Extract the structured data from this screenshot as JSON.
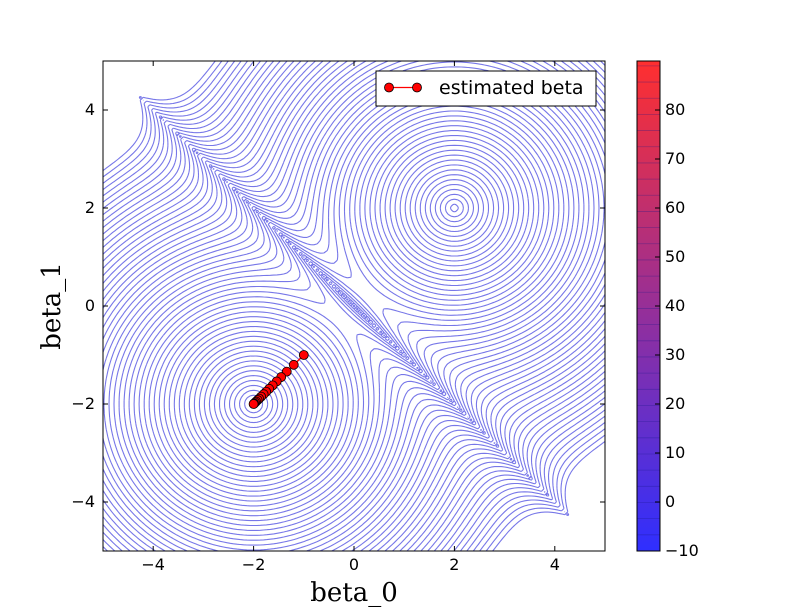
{
  "chart_data": {
    "type": "contour",
    "xlabel": "beta_0",
    "ylabel": "beta_1",
    "xlim": [
      -5,
      5
    ],
    "ylim": [
      -5,
      5
    ],
    "x_ticks": [
      -4,
      -2,
      0,
      2,
      4
    ],
    "y_ticks": [
      -4,
      -2,
      0,
      2,
      4
    ],
    "contour_color": "#7777e8",
    "contour_minima": [
      {
        "x": -2,
        "y": -2
      },
      {
        "x": 2,
        "y": 2
      }
    ],
    "series": [
      {
        "name": "estimated beta",
        "color": "#ff0000",
        "marker": "circle",
        "points": [
          {
            "x": -1.0,
            "y": -1.0
          },
          {
            "x": -1.2,
            "y": -1.2
          },
          {
            "x": -1.34,
            "y": -1.34
          },
          {
            "x": -1.45,
            "y": -1.45
          },
          {
            "x": -1.54,
            "y": -1.54
          },
          {
            "x": -1.62,
            "y": -1.62
          },
          {
            "x": -1.69,
            "y": -1.69
          },
          {
            "x": -1.75,
            "y": -1.75
          },
          {
            "x": -1.8,
            "y": -1.8
          },
          {
            "x": -1.85,
            "y": -1.85
          },
          {
            "x": -1.89,
            "y": -1.89
          },
          {
            "x": -1.92,
            "y": -1.92
          },
          {
            "x": -1.95,
            "y": -1.95
          },
          {
            "x": -1.97,
            "y": -1.97
          },
          {
            "x": -1.99,
            "y": -1.99
          },
          {
            "x": -2.0,
            "y": -2.0
          }
        ]
      }
    ],
    "legend": {
      "placement": "top-right",
      "entries": [
        "estimated beta"
      ]
    },
    "colorbar": {
      "min": -10,
      "max": 90,
      "ticks": [
        -10,
        0,
        10,
        20,
        30,
        40,
        50,
        60,
        70,
        80
      ],
      "color_low": "#2f2fff",
      "color_high": "#ff2f2f"
    }
  }
}
